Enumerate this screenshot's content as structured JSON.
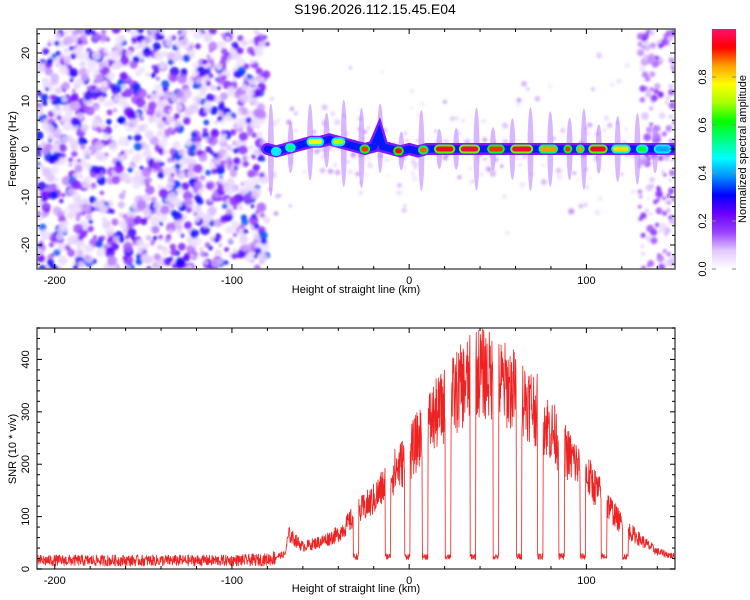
{
  "title": "S196.2026.112.15.45.E04",
  "chart_data": [
    {
      "type": "heatmap",
      "name": "spectrogram",
      "xlabel": "Height of straight line (km)",
      "ylabel": "Frequency (Hz)",
      "xlim": [
        -210,
        150
      ],
      "ylim": [
        -25,
        25
      ],
      "xticks": [
        -200,
        -100,
        0,
        100
      ],
      "xtick_labels": [
        "-200",
        "-100",
        "0",
        "100"
      ],
      "xminor_step": 20,
      "yticks": [
        -20,
        -10,
        0,
        10,
        20
      ],
      "ytick_labels": [
        "-20",
        "-10",
        "0",
        "10",
        "20"
      ],
      "yminor_step": 2,
      "noise_region_x": [
        -210,
        -80
      ],
      "signal_start_x": -80,
      "signal_ridge": {
        "x": [
          -80,
          -75,
          -70,
          -65,
          -60,
          -55,
          -50,
          -45,
          -40,
          -35,
          -30,
          -25,
          -20,
          -17,
          -15,
          -10,
          -5,
          0,
          5,
          10,
          20,
          40,
          60,
          80,
          100,
          120,
          140,
          150
        ],
        "freq_hz": [
          0,
          -0.5,
          0,
          0.5,
          1,
          1.5,
          1.5,
          2,
          1.5,
          1,
          0.5,
          0,
          0.5,
          3,
          0.5,
          0,
          -0.5,
          0,
          -0.5,
          0,
          0,
          0,
          0,
          0,
          0,
          0,
          0,
          0
        ]
      },
      "signal_segments": [
        {
          "x0": -78,
          "x1": -72,
          "amp": 0.45
        },
        {
          "x0": -70,
          "x1": -64,
          "amp": 0.55
        },
        {
          "x0": -58,
          "x1": -48,
          "amp": 0.75
        },
        {
          "x0": -44,
          "x1": -36,
          "amp": 0.7
        },
        {
          "x0": -28,
          "x1": -22,
          "amp": 0.9
        },
        {
          "x0": -9,
          "x1": -3,
          "amp": 0.92
        },
        {
          "x0": 5,
          "x1": 11,
          "amp": 0.88
        },
        {
          "x0": 14,
          "x1": 26,
          "amp": 0.95
        },
        {
          "x0": 28,
          "x1": 40,
          "amp": 0.96
        },
        {
          "x0": 44,
          "x1": 54,
          "amp": 0.9
        },
        {
          "x0": 57,
          "x1": 70,
          "amp": 0.96
        },
        {
          "x0": 73,
          "x1": 84,
          "amp": 0.85
        },
        {
          "x0": 87,
          "x1": 92,
          "amp": 0.9
        },
        {
          "x0": 94,
          "x1": 99,
          "amp": 0.85
        },
        {
          "x0": 101,
          "x1": 112,
          "amp": 0.95
        },
        {
          "x0": 114,
          "x1": 125,
          "amp": 0.8
        },
        {
          "x0": 128,
          "x1": 135,
          "amp": 0.6
        },
        {
          "x0": 138,
          "x1": 148,
          "amp": 0.4
        }
      ],
      "colorbar": {
        "label": "Normalized spectral amplitude",
        "range": [
          0.0,
          1.0
        ],
        "ticks": [
          0.0,
          0.2,
          0.4,
          0.6,
          0.8
        ],
        "tick_labels": [
          "0.0",
          "0.2",
          "0.4",
          "0.6",
          "0.8"
        ],
        "colors": [
          "#ffffff",
          "#e0c8ff",
          "#9a40ff",
          "#6a00ff",
          "#0000ff",
          "#0090ff",
          "#00ffff",
          "#00ff80",
          "#00ff00",
          "#aaff00",
          "#ffff00",
          "#ffa000",
          "#ff0000",
          "#ff1070"
        ]
      }
    },
    {
      "type": "line",
      "name": "snr",
      "xlabel": "Height of straight line (km)",
      "ylabel": "SNR (10 * v/v)",
      "xlim": [
        -210,
        150
      ],
      "ylim": [
        0,
        460
      ],
      "xticks": [
        -200,
        -100,
        0,
        100
      ],
      "xtick_labels": [
        "-200",
        "-100",
        "0",
        "100"
      ],
      "xminor_step": 20,
      "yticks": [
        0,
        100,
        200,
        300,
        400
      ],
      "ytick_labels": [
        "0",
        "100",
        "200",
        "300",
        "400"
      ],
      "yminor_step": 20,
      "color": "#ee2222",
      "envelope": {
        "x": [
          -210,
          -100,
          -80,
          -70,
          -68,
          -60,
          -50,
          -40,
          -30,
          -20,
          -10,
          0,
          10,
          20,
          30,
          40,
          50,
          60,
          70,
          80,
          90,
          100,
          110,
          120,
          130,
          140,
          150
        ],
        "snr": [
          18,
          18,
          20,
          30,
          70,
          45,
          55,
          70,
          110,
          140,
          190,
          230,
          290,
          330,
          370,
          400,
          380,
          360,
          330,
          280,
          230,
          190,
          140,
          90,
          60,
          35,
          25
        ]
      },
      "dropouts_x": [
        -30,
        -12,
        -1,
        9,
        22,
        36,
        49,
        62,
        74,
        86,
        98,
        110,
        122
      ],
      "noise_level": 18
    }
  ]
}
